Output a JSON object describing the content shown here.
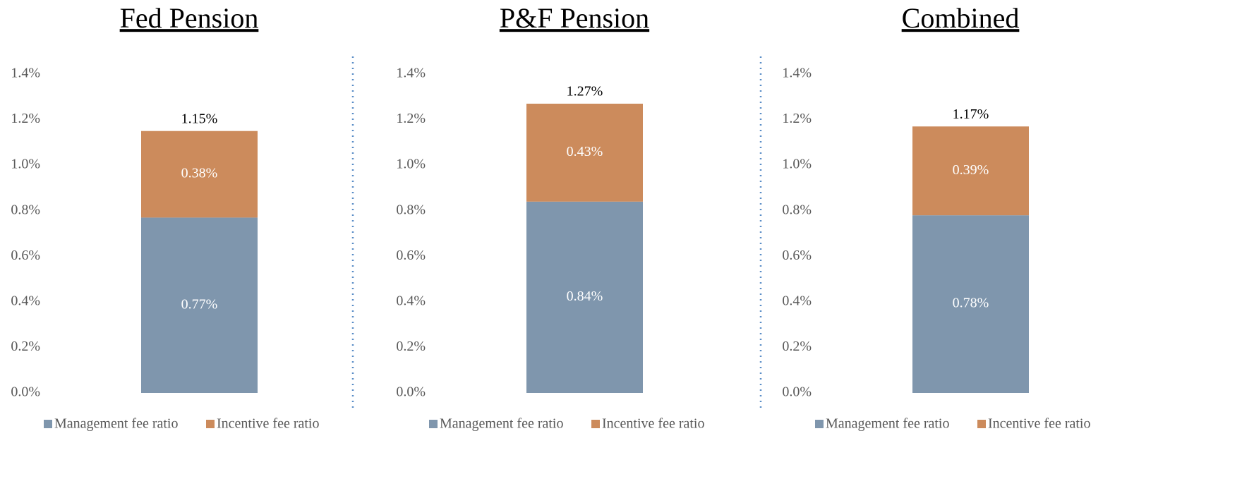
{
  "chart_data": [
    {
      "type": "stacked_bar",
      "title": "Fed Pension",
      "categories": [
        null
      ],
      "series": [
        {
          "name": "Management fee ratio",
          "color": "#7f96ad",
          "values": [
            0.77
          ],
          "value_labels": [
            "0.77%"
          ]
        },
        {
          "name": "Incentive fee ratio",
          "color": "#cc8b5c",
          "values": [
            0.38
          ],
          "value_labels": [
            "0.38%"
          ]
        }
      ],
      "total": [
        {
          "value": 1.15,
          "label": "1.15%"
        }
      ],
      "ylim": [
        0,
        1.4
      ],
      "yticks": [
        {
          "value": 0,
          "label": "0.0%"
        },
        {
          "value": 0.2,
          "label": "0.2%"
        },
        {
          "value": 0.4,
          "label": "0.4%"
        },
        {
          "value": 0.6,
          "label": "0.6%"
        },
        {
          "value": 0.8,
          "label": "0.8%"
        },
        {
          "value": 1.0,
          "label": "1.0%"
        },
        {
          "value": 1.2,
          "label": "1.2%"
        },
        {
          "value": 1.4,
          "label": "1.4%"
        }
      ],
      "grid": false,
      "legend": "bottom"
    },
    {
      "type": "stacked_bar",
      "title": "P&F Pension",
      "categories": [
        null
      ],
      "series": [
        {
          "name": "Management fee ratio",
          "color": "#7f96ad",
          "values": [
            0.84
          ],
          "value_labels": [
            "0.84%"
          ]
        },
        {
          "name": "Incentive fee ratio",
          "color": "#cc8b5c",
          "values": [
            0.43
          ],
          "value_labels": [
            "0.43%"
          ]
        }
      ],
      "total": [
        {
          "value": 1.27,
          "label": "1.27%"
        }
      ],
      "ylim": [
        0,
        1.4
      ],
      "yticks": [
        {
          "value": 0,
          "label": "0.0%"
        },
        {
          "value": 0.2,
          "label": "0.2%"
        },
        {
          "value": 0.4,
          "label": "0.4%"
        },
        {
          "value": 0.6,
          "label": "0.6%"
        },
        {
          "value": 0.8,
          "label": "0.8%"
        },
        {
          "value": 1.0,
          "label": "1.0%"
        },
        {
          "value": 1.2,
          "label": "1.2%"
        },
        {
          "value": 1.4,
          "label": "1.4%"
        }
      ],
      "grid": false,
      "legend": "bottom"
    },
    {
      "type": "stacked_bar",
      "title": "Combined",
      "categories": [
        null
      ],
      "series": [
        {
          "name": "Management fee ratio",
          "color": "#7f96ad",
          "values": [
            0.78
          ],
          "value_labels": [
            "0.78%"
          ]
        },
        {
          "name": "Incentive fee ratio",
          "color": "#cc8b5c",
          "values": [
            0.39
          ],
          "value_labels": [
            "0.39%"
          ]
        }
      ],
      "total": [
        {
          "value": 1.17,
          "label": "1.17%"
        }
      ],
      "ylim": [
        0,
        1.4
      ],
      "yticks": [
        {
          "value": 0,
          "label": "0.0%"
        },
        {
          "value": 0.2,
          "label": "0.2%"
        },
        {
          "value": 0.4,
          "label": "0.4%"
        },
        {
          "value": 0.6,
          "label": "0.6%"
        },
        {
          "value": 0.8,
          "label": "0.8%"
        },
        {
          "value": 1.0,
          "label": "1.0%"
        },
        {
          "value": 1.2,
          "label": "1.2%"
        },
        {
          "value": 1.4,
          "label": "1.4%"
        }
      ],
      "grid": false,
      "legend": "bottom"
    }
  ]
}
